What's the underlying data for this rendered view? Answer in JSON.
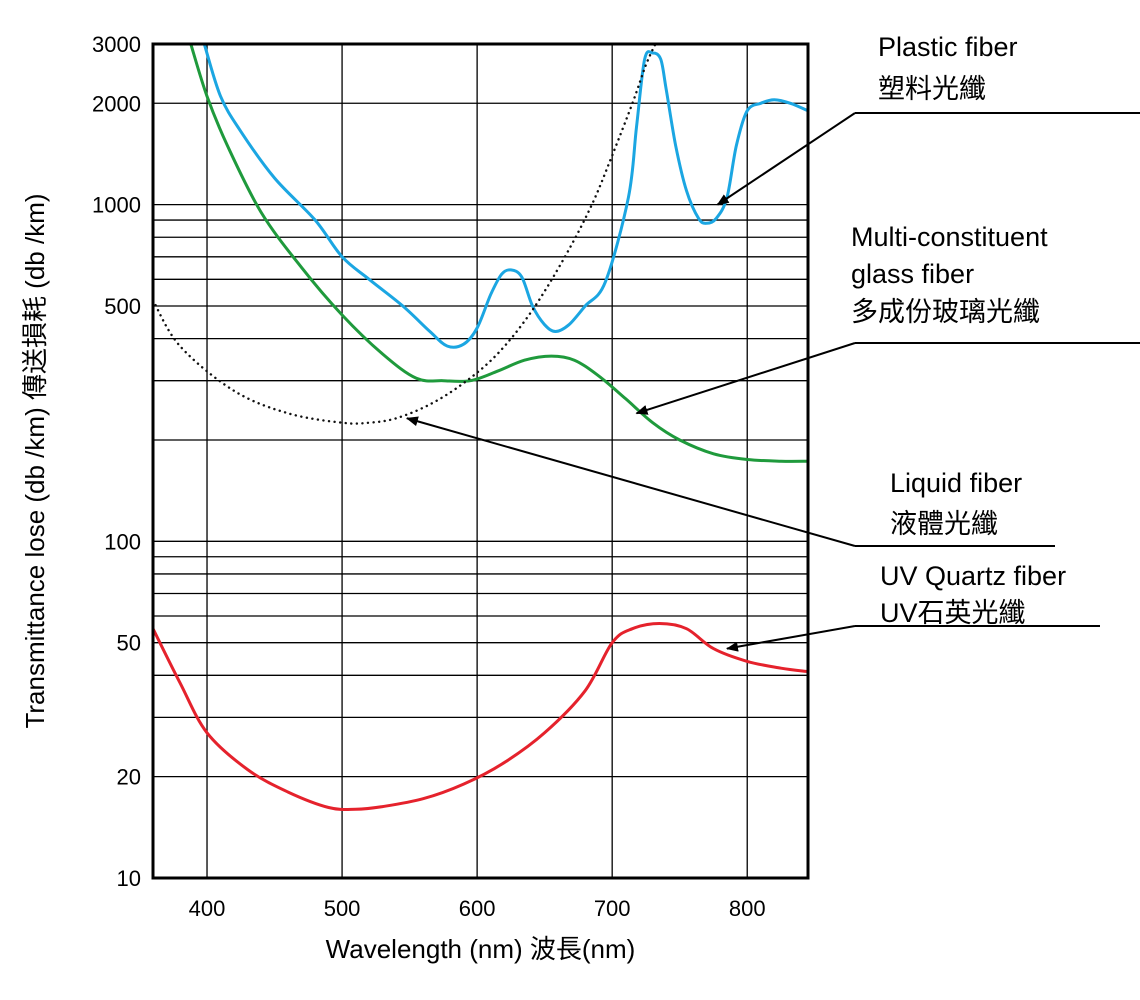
{
  "chart_data": {
    "type": "line",
    "title": "",
    "xlabel": "Wavelength (nm) 波長(nm)",
    "ylabel": "Transmittance lose (db /km)  傳送損耗 (db /km)",
    "y_scale": "log",
    "xlim": [
      360,
      845
    ],
    "ylim": [
      10,
      3000
    ],
    "x_ticks": [
      400,
      500,
      600,
      700,
      800
    ],
    "y_tick_labels": [
      10,
      20,
      50,
      100,
      500,
      1000,
      2000,
      3000
    ],
    "y_gridlines": [
      10,
      20,
      30,
      40,
      50,
      60,
      70,
      80,
      90,
      100,
      200,
      300,
      400,
      500,
      600,
      700,
      800,
      900,
      1000,
      2000,
      3000
    ],
    "grid": true,
    "legend": "none",
    "series": [
      {
        "name": "Plastic fiber 塑料光纖",
        "color": "#1ba6e2",
        "style": "solid",
        "points": [
          [
            398,
            3000
          ],
          [
            410,
            2100
          ],
          [
            425,
            1650
          ],
          [
            450,
            1200
          ],
          [
            480,
            900
          ],
          [
            500,
            700
          ],
          [
            520,
            600
          ],
          [
            545,
            500
          ],
          [
            565,
            420
          ],
          [
            578,
            380
          ],
          [
            590,
            385
          ],
          [
            600,
            430
          ],
          [
            610,
            540
          ],
          [
            618,
            620
          ],
          [
            625,
            640
          ],
          [
            633,
            610
          ],
          [
            641,
            500
          ],
          [
            650,
            440
          ],
          [
            658,
            420
          ],
          [
            668,
            440
          ],
          [
            680,
            500
          ],
          [
            695,
            590
          ],
          [
            712,
            1050
          ],
          [
            718,
            1700
          ],
          [
            724,
            2700
          ],
          [
            730,
            2820
          ],
          [
            736,
            2700
          ],
          [
            740,
            2200
          ],
          [
            747,
            1500
          ],
          [
            755,
            1100
          ],
          [
            764,
            910
          ],
          [
            770,
            880
          ],
          [
            777,
            910
          ],
          [
            785,
            1050
          ],
          [
            792,
            1500
          ],
          [
            800,
            1900
          ],
          [
            810,
            2000
          ],
          [
            820,
            2050
          ],
          [
            832,
            2000
          ],
          [
            845,
            1900
          ]
        ]
      },
      {
        "name": "Multi-constituent glass fiber 多成份玻璃光纖",
        "color": "#1f9a3c",
        "style": "solid",
        "points": [
          [
            388,
            3000
          ],
          [
            400,
            2100
          ],
          [
            415,
            1500
          ],
          [
            440,
            950
          ],
          [
            470,
            650
          ],
          [
            500,
            470
          ],
          [
            530,
            360
          ],
          [
            555,
            305
          ],
          [
            575,
            300
          ],
          [
            595,
            300
          ],
          [
            615,
            320
          ],
          [
            635,
            345
          ],
          [
            655,
            355
          ],
          [
            672,
            345
          ],
          [
            690,
            310
          ],
          [
            710,
            265
          ],
          [
            730,
            225
          ],
          [
            750,
            200
          ],
          [
            775,
            182
          ],
          [
            800,
            175
          ],
          [
            825,
            173
          ],
          [
            845,
            173
          ]
        ]
      },
      {
        "name": "Liquid fiber 液體光纖",
        "color": "#111111",
        "style": "dotted",
        "points": [
          [
            360,
            520
          ],
          [
            380,
            380
          ],
          [
            420,
            280
          ],
          [
            460,
            240
          ],
          [
            500,
            225
          ],
          [
            520,
            225
          ],
          [
            540,
            232
          ],
          [
            565,
            255
          ],
          [
            590,
            295
          ],
          [
            615,
            360
          ],
          [
            640,
            480
          ],
          [
            665,
            700
          ],
          [
            685,
            1000
          ],
          [
            700,
            1400
          ],
          [
            715,
            2000
          ],
          [
            725,
            2600
          ],
          [
            732,
            3000
          ]
        ]
      },
      {
        "name": "UV Quartz fiber UV石英光纖",
        "color": "#e5222c",
        "style": "solid",
        "points": [
          [
            360,
            55
          ],
          [
            380,
            38
          ],
          [
            400,
            27
          ],
          [
            430,
            21
          ],
          [
            460,
            18
          ],
          [
            490,
            16.2
          ],
          [
            510,
            16
          ],
          [
            530,
            16.3
          ],
          [
            560,
            17.2
          ],
          [
            590,
            19
          ],
          [
            620,
            22
          ],
          [
            650,
            27
          ],
          [
            680,
            36
          ],
          [
            700,
            50
          ],
          [
            715,
            55
          ],
          [
            735,
            57
          ],
          [
            755,
            55
          ],
          [
            775,
            48
          ],
          [
            800,
            44
          ],
          [
            825,
            42
          ],
          [
            845,
            41
          ]
        ]
      }
    ],
    "annotations": [
      {
        "series": 0,
        "lines": [
          "Plastic fiber",
          "塑料光纖"
        ],
        "target": [
          778,
          1000
        ]
      },
      {
        "series": 1,
        "lines": [
          "Multi-constituent",
          "glass fiber",
          "多成份玻璃光纖"
        ],
        "target": [
          718,
          240
        ]
      },
      {
        "series": 2,
        "lines": [
          "Liquid fiber",
          "液體光纖"
        ],
        "target": [
          548,
          232
        ]
      },
      {
        "series": 3,
        "lines": [
          "UV Quartz fiber",
          "UV石英光纖"
        ],
        "target": [
          785,
          48
        ]
      }
    ]
  }
}
